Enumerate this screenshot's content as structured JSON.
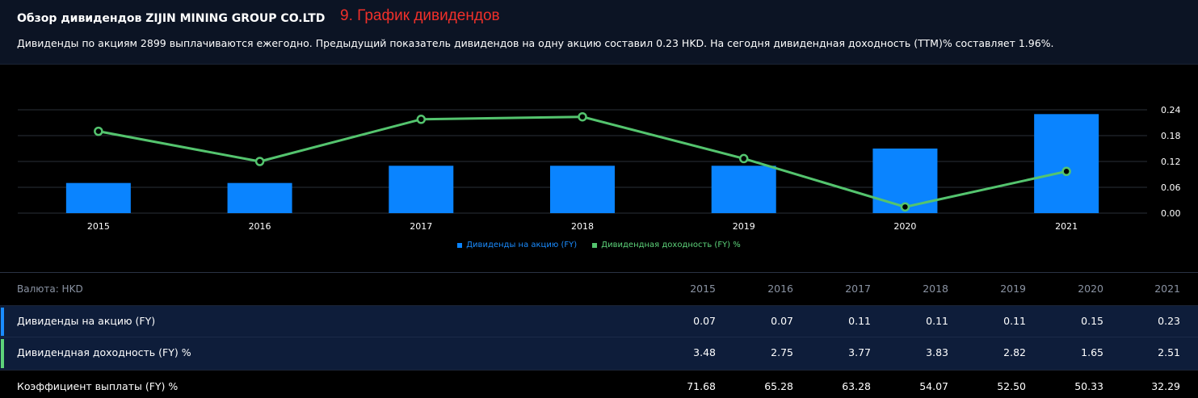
{
  "header": {
    "title": "Обзор дивидендов ZIJIN MINING GROUP CO.LTD",
    "annotation": "9. График дивидендов",
    "description": "Дивиденды по акциям 2899 выплачиваются ежегодно. Предыдущий показатель дивидендов на одну акцию составил 0.23 HKD. На сегодня дивидендная доходность (TTM)% составляет 1.96%."
  },
  "colors": {
    "bar": "#0a84ff",
    "line": "#54c46e",
    "grid": "#2a2f38",
    "axis_text": "#ffffff"
  },
  "chart_data": {
    "type": "bar",
    "categories": [
      "2015",
      "2016",
      "2017",
      "2018",
      "2019",
      "2020",
      "2021"
    ],
    "series": [
      {
        "name": "Дивиденды на акцию (FY)",
        "type": "bar",
        "axis": "right",
        "values": [
          0.07,
          0.07,
          0.11,
          0.11,
          0.11,
          0.15,
          0.23
        ]
      },
      {
        "name": "Дивидендная доходность (FY) %",
        "type": "line",
        "axis": "hidden",
        "values": [
          3.48,
          2.75,
          3.77,
          3.83,
          2.82,
          1.65,
          2.51
        ]
      }
    ],
    "y_right": {
      "ticks": [
        "0.00",
        "0.06",
        "0.12",
        "0.18",
        "0.24"
      ],
      "ylim": [
        0,
        0.24
      ]
    },
    "y_hidden": {
      "ylim": [
        1.5,
        4.0
      ]
    },
    "grid": true,
    "legend": "bottom-center",
    "title": "",
    "xlabel": "",
    "ylabel": ""
  },
  "table": {
    "currency_label": "Валюта: HKD",
    "years": [
      "2015",
      "2016",
      "2017",
      "2018",
      "2019",
      "2020",
      "2021"
    ],
    "rows": [
      {
        "label": "Дивиденды на акцию (FY)",
        "values": [
          "0.07",
          "0.07",
          "0.11",
          "0.11",
          "0.11",
          "0.15",
          "0.23"
        ]
      },
      {
        "label": "Дивидендная доходность (FY) %",
        "values": [
          "3.48",
          "2.75",
          "3.77",
          "3.83",
          "2.82",
          "1.65",
          "2.51"
        ]
      },
      {
        "label": "Коэффициент выплаты (FY) %",
        "values": [
          "71.68",
          "65.28",
          "63.28",
          "54.07",
          "52.50",
          "50.33",
          "32.29"
        ]
      }
    ]
  }
}
